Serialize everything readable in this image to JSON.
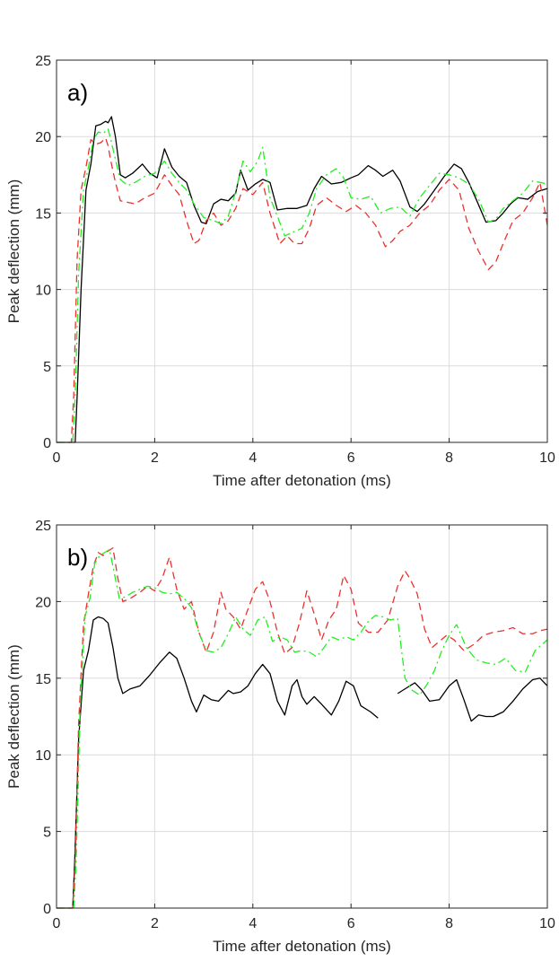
{
  "chart_data": [
    {
      "type": "line",
      "panel_label": "a)",
      "xlabel": "Time after detonation (ms)",
      "ylabel": "Peak deflection (mm)",
      "xlim": [
        0,
        10
      ],
      "ylim": [
        0,
        25
      ],
      "xticks": [
        0,
        2,
        4,
        6,
        8,
        10
      ],
      "yticks": [
        0,
        5,
        10,
        15,
        20,
        25
      ],
      "grid": true,
      "series": [
        {
          "color": "#000000",
          "dash": "solid",
          "x": [
            0,
            0.38,
            0.42,
            0.5,
            0.6,
            0.7,
            0.8,
            0.9,
            1.0,
            1.05,
            1.12,
            1.2,
            1.3,
            1.4,
            1.55,
            1.75,
            1.9,
            2.05,
            2.2,
            2.35,
            2.5,
            2.65,
            2.8,
            2.95,
            3.05,
            3.2,
            3.35,
            3.5,
            3.65,
            3.75,
            3.9,
            4.05,
            4.2,
            4.35,
            4.5,
            4.7,
            4.9,
            5.1,
            5.25,
            5.4,
            5.6,
            5.8,
            6.0,
            6.15,
            6.35,
            6.5,
            6.65,
            6.85,
            7.0,
            7.2,
            7.35,
            7.5,
            7.7,
            7.9,
            8.1,
            8.25,
            8.4,
            8.55,
            8.75,
            8.95,
            9.1,
            9.25,
            9.4,
            9.6,
            9.8,
            10.0
          ],
          "y": [
            0,
            0,
            3,
            10,
            16.5,
            18.2,
            20.7,
            20.8,
            21.0,
            20.9,
            21.3,
            20.0,
            17.5,
            17.3,
            17.6,
            18.2,
            17.6,
            17.3,
            19.2,
            18.0,
            17.4,
            17.0,
            15.5,
            14.4,
            14.3,
            15.6,
            15.9,
            15.8,
            16.3,
            17.8,
            16.5,
            16.9,
            17.2,
            17.0,
            15.2,
            15.3,
            15.3,
            15.5,
            16.6,
            17.4,
            16.9,
            17.0,
            17.3,
            17.5,
            18.1,
            17.8,
            17.4,
            17.8,
            17.1,
            15.4,
            15.1,
            15.6,
            16.5,
            17.4,
            18.2,
            17.9,
            17.0,
            15.9,
            14.4,
            14.5,
            15.0,
            15.6,
            16.0,
            15.9,
            16.4,
            16.6
          ]
        },
        {
          "color": "#e8312f",
          "dash": "dashed",
          "x": [
            0,
            0.3,
            0.35,
            0.42,
            0.5,
            0.6,
            0.7,
            0.8,
            0.9,
            1.0,
            1.05,
            1.1,
            1.2,
            1.3,
            1.45,
            1.6,
            1.8,
            2.0,
            2.2,
            2.35,
            2.5,
            2.65,
            2.8,
            2.9,
            3.05,
            3.2,
            3.35,
            3.5,
            3.65,
            3.8,
            4.0,
            4.2,
            4.35,
            4.55,
            4.7,
            4.85,
            5.0,
            5.15,
            5.3,
            5.5,
            5.7,
            5.9,
            6.1,
            6.3,
            6.5,
            6.7,
            6.85,
            7.0,
            7.2,
            7.4,
            7.6,
            7.8,
            8.0,
            8.2,
            8.4,
            8.6,
            8.8,
            8.95,
            9.1,
            9.3,
            9.5,
            9.7,
            9.85,
            10.0
          ],
          "y": [
            0,
            0,
            3,
            12,
            16.5,
            18.0,
            19.8,
            19.5,
            19.6,
            19.9,
            19.4,
            18.5,
            17.0,
            15.8,
            15.7,
            15.6,
            16.0,
            16.3,
            17.5,
            16.8,
            16.2,
            14.5,
            13.0,
            13.2,
            14.5,
            15.0,
            14.2,
            14.5,
            15.3,
            16.6,
            16.2,
            17.0,
            15.0,
            13.0,
            13.5,
            13.0,
            13.0,
            14.0,
            15.5,
            16.0,
            15.5,
            15.1,
            15.5,
            15.0,
            14.2,
            12.8,
            13.2,
            13.8,
            14.2,
            15.0,
            15.5,
            16.5,
            17.2,
            16.5,
            14.0,
            12.5,
            11.3,
            11.8,
            13.0,
            14.5,
            15.0,
            16.0,
            17.0,
            14.2
          ]
        },
        {
          "color": "#22ee22",
          "dash": "dashdot",
          "x": [
            0,
            0.33,
            0.38,
            0.45,
            0.55,
            0.65,
            0.75,
            0.85,
            0.95,
            1.05,
            1.12,
            1.2,
            1.3,
            1.45,
            1.6,
            1.8,
            2.0,
            2.2,
            2.35,
            2.5,
            2.65,
            2.8,
            3.0,
            3.2,
            3.35,
            3.5,
            3.65,
            3.8,
            3.95,
            4.1,
            4.2,
            4.35,
            4.5,
            4.65,
            4.85,
            5.0,
            5.15,
            5.3,
            5.5,
            5.7,
            5.85,
            6.0,
            6.2,
            6.4,
            6.6,
            6.8,
            7.0,
            7.2,
            7.4,
            7.6,
            7.8,
            8.0,
            8.2,
            8.4,
            8.6,
            8.8,
            8.95,
            9.1,
            9.3,
            9.5,
            9.7,
            9.85,
            10.0
          ],
          "y": [
            0,
            0,
            3,
            11,
            16.5,
            18.0,
            19.8,
            20.3,
            20.2,
            20.5,
            19.6,
            18.5,
            17.2,
            16.8,
            17.0,
            17.4,
            17.6,
            18.4,
            17.6,
            17.0,
            16.5,
            15.6,
            14.7,
            14.5,
            14.3,
            14.8,
            16.4,
            18.4,
            17.7,
            18.4,
            19.3,
            16.0,
            14.8,
            13.5,
            13.8,
            14.0,
            15.0,
            16.6,
            17.5,
            17.9,
            17.3,
            16.0,
            15.9,
            16.1,
            15.0,
            15.3,
            15.4,
            14.8,
            16.0,
            16.8,
            17.6,
            17.5,
            17.3,
            16.9,
            15.9,
            14.4,
            14.6,
            15.3,
            15.8,
            16.3,
            17.1,
            17.0,
            16.9
          ]
        }
      ]
    },
    {
      "type": "line",
      "panel_label": "b)",
      "xlabel": "Time after detonation (ms)",
      "ylabel": "Peak deflection (mm)",
      "xlim": [
        0,
        10
      ],
      "ylim": [
        0,
        25
      ],
      "xticks": [
        0,
        2,
        4,
        6,
        8,
        10
      ],
      "yticks": [
        0,
        5,
        10,
        15,
        20,
        25
      ],
      "grid": true,
      "series": [
        {
          "color": "#000000",
          "dash": "solid",
          "x": [
            0,
            0.33,
            0.37,
            0.45,
            0.55,
            0.65,
            0.75,
            0.85,
            0.95,
            1.05,
            1.15,
            1.25,
            1.35,
            1.5,
            1.7,
            1.9,
            2.1,
            2.3,
            2.45,
            2.6,
            2.75,
            2.85,
            3.0,
            3.15,
            3.3,
            3.5,
            3.6,
            3.75,
            3.9,
            4.05,
            4.2,
            4.35,
            4.5,
            4.65,
            4.8,
            4.9,
            5.0,
            5.1,
            5.25,
            5.4,
            5.6,
            5.75,
            5.9,
            6.05,
            6.2,
            6.4,
            6.55,
            null,
            6.95,
            7.1,
            7.3,
            7.45,
            7.6,
            7.8,
            8.0,
            8.15,
            8.3,
            8.45,
            8.6,
            8.75,
            8.9,
            9.1,
            9.3,
            9.5,
            9.7,
            9.85,
            10.0
          ],
          "y": [
            0,
            0,
            3,
            11,
            15.5,
            16.8,
            18.8,
            19.0,
            18.9,
            18.6,
            17.0,
            15.0,
            14.0,
            14.3,
            14.5,
            15.2,
            16.0,
            16.7,
            16.3,
            15.0,
            13.5,
            12.8,
            13.9,
            13.6,
            13.5,
            14.2,
            14.0,
            14.1,
            14.5,
            15.3,
            15.9,
            15.3,
            13.5,
            12.6,
            14.5,
            14.9,
            13.8,
            13.3,
            13.8,
            13.3,
            12.6,
            13.5,
            14.8,
            14.5,
            13.2,
            12.8,
            12.4,
            null,
            14.0,
            14.3,
            14.7,
            14.2,
            13.5,
            13.6,
            14.5,
            14.9,
            13.6,
            12.2,
            12.6,
            12.5,
            12.5,
            12.8,
            13.5,
            14.3,
            14.9,
            15.0,
            14.5
          ]
        },
        {
          "color": "#e8312f",
          "dash": "dashed",
          "x": [
            0,
            0.33,
            0.38,
            0.45,
            0.55,
            0.65,
            0.75,
            0.85,
            0.95,
            1.05,
            1.15,
            1.25,
            1.35,
            1.5,
            1.7,
            1.85,
            2.0,
            2.15,
            2.3,
            2.45,
            2.6,
            2.75,
            2.9,
            3.05,
            3.2,
            3.35,
            3.45,
            3.6,
            3.75,
            3.9,
            4.05,
            4.2,
            4.35,
            4.5,
            4.65,
            4.8,
            4.95,
            5.1,
            5.25,
            5.4,
            5.55,
            5.7,
            5.85,
            6.0,
            6.15,
            6.35,
            6.55,
            6.75,
            6.95,
            7.1,
            7.2,
            7.35,
            7.5,
            7.65,
            7.8,
            7.95,
            8.1,
            8.3,
            8.5,
            8.7,
            8.9,
            9.1,
            9.3,
            9.5,
            9.7,
            9.85,
            10.0
          ],
          "y": [
            0,
            0,
            3,
            12,
            18.5,
            20.5,
            22.3,
            23.2,
            23.0,
            23.3,
            23.5,
            21.5,
            20.0,
            20.2,
            20.6,
            21.0,
            20.7,
            21.5,
            22.9,
            20.8,
            19.5,
            20.0,
            18.0,
            16.7,
            18.0,
            20.6,
            19.5,
            19.0,
            18.2,
            19.5,
            20.8,
            21.3,
            20.0,
            18.0,
            16.6,
            17.0,
            18.6,
            20.7,
            19.2,
            17.5,
            18.8,
            19.5,
            21.7,
            20.8,
            18.6,
            18.0,
            18.0,
            18.8,
            21.0,
            22.0,
            21.5,
            20.5,
            18.2,
            17.0,
            17.4,
            17.8,
            17.5,
            16.8,
            17.2,
            17.8,
            18.0,
            18.1,
            18.3,
            17.9,
            17.9,
            18.1,
            18.2
          ]
        },
        {
          "color": "#22ee22",
          "dash": "dashdot",
          "x": [
            0,
            0.35,
            0.4,
            0.48,
            0.58,
            0.68,
            0.78,
            0.88,
            0.98,
            1.08,
            1.18,
            1.28,
            1.4,
            1.55,
            1.7,
            1.85,
            2.0,
            2.15,
            2.3,
            2.45,
            2.6,
            2.75,
            2.9,
            3.05,
            3.2,
            3.35,
            3.5,
            3.65,
            3.8,
            3.95,
            4.1,
            4.25,
            4.4,
            4.55,
            4.7,
            4.85,
            5.0,
            5.15,
            5.3,
            5.45,
            5.6,
            5.75,
            5.9,
            6.05,
            6.2,
            6.35,
            6.5,
            6.65,
            6.8,
            6.95,
            7.1,
            7.25,
            7.4,
            7.55,
            7.7,
            7.85,
            8.0,
            8.15,
            8.35,
            8.55,
            8.75,
            8.95,
            9.15,
            9.35,
            9.55,
            9.75,
            10.0
          ],
          "y": [
            0,
            0,
            3,
            13,
            19.0,
            20.2,
            22.5,
            23.0,
            23.2,
            23.4,
            21.8,
            20.2,
            20.3,
            20.6,
            20.8,
            21.0,
            20.9,
            20.6,
            20.5,
            20.6,
            20.2,
            19.6,
            18.0,
            16.8,
            16.7,
            17.0,
            17.9,
            19.0,
            18.2,
            17.8,
            18.8,
            19.0,
            17.4,
            17.7,
            17.5,
            16.7,
            16.8,
            16.7,
            16.4,
            17.0,
            17.7,
            17.5,
            17.7,
            17.5,
            18.0,
            18.7,
            19.1,
            19.0,
            18.8,
            18.9,
            15.0,
            14.2,
            13.9,
            14.6,
            15.5,
            16.8,
            17.8,
            18.5,
            17.0,
            16.2,
            16.0,
            15.9,
            16.3,
            15.5,
            15.4,
            16.8,
            17.5
          ]
        }
      ]
    }
  ]
}
